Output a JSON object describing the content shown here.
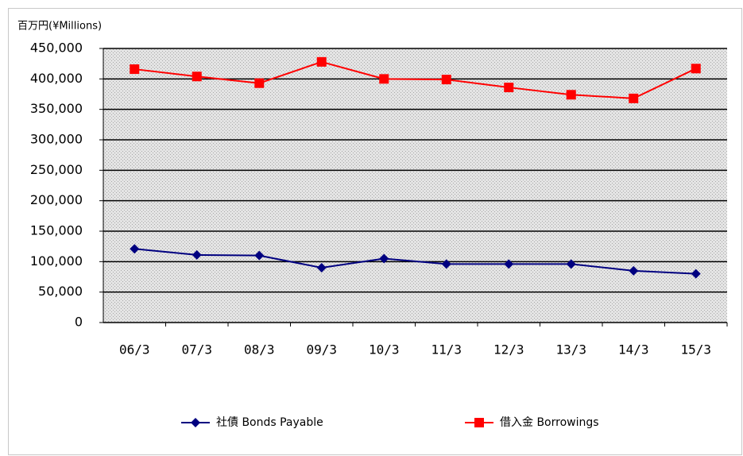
{
  "chart_data": {
    "type": "line",
    "y_label": "百万円(¥Millions)",
    "categories": [
      "06/3",
      "07/3",
      "08/3",
      "09/3",
      "10/3",
      "11/3",
      "12/3",
      "13/3",
      "14/3",
      "15/3"
    ],
    "series": [
      {
        "name": "社債 Bonds Payable",
        "color": "#000080",
        "marker": "diamond",
        "values": [
          121000,
          111000,
          110000,
          90000,
          105000,
          96000,
          96000,
          96000,
          85000,
          80000
        ]
      },
      {
        "name": "借入金 Borrowings",
        "color": "#ff0000",
        "marker": "square",
        "values": [
          416000,
          404000,
          393000,
          428000,
          400000,
          399000,
          386000,
          374000,
          368000,
          417000
        ]
      }
    ],
    "ylim": [
      0,
      450000
    ],
    "yticks": [
      0,
      {
        "value": 50000,
        "label": "50,000"
      },
      {
        "value": 100000,
        "label": "100,000"
      },
      {
        "value": 150000,
        "label": "150,000"
      },
      {
        "value": 200000,
        "label": "200,000"
      },
      {
        "value": 250000,
        "label": "250,000"
      },
      {
        "value": 300000,
        "label": "300,000"
      },
      {
        "value": 350000,
        "label": "350,000"
      },
      {
        "value": 400000,
        "label": "400,000"
      },
      {
        "value": 450000,
        "label": "450,000"
      }
    ],
    "grid": true,
    "legend": "bottom"
  }
}
